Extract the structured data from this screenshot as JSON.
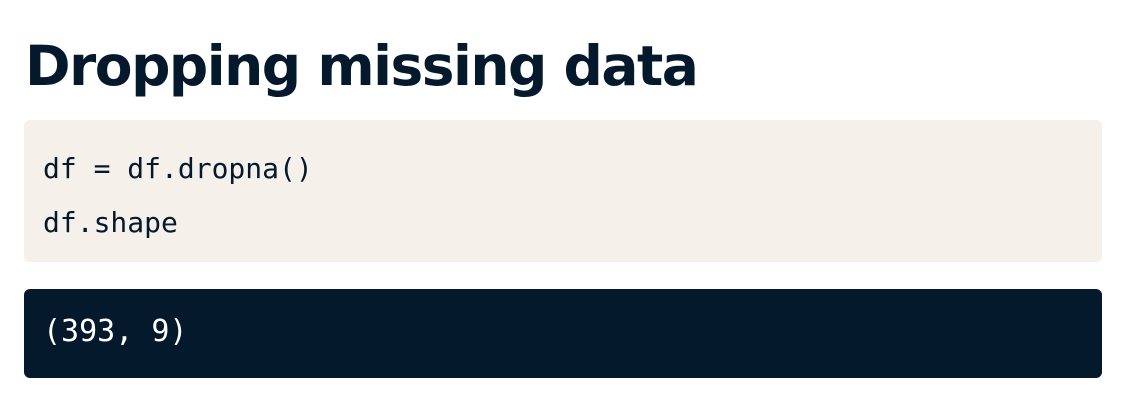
{
  "slide": {
    "title": "Dropping missing data"
  },
  "code": {
    "lines": [
      "df = df.dropna()",
      "df.shape"
    ]
  },
  "output": {
    "text": "(393, 9)"
  },
  "colors": {
    "title": "#05192d",
    "code_background": "#f5f1ea",
    "output_background": "#05192d",
    "output_text": "#ffffff"
  }
}
